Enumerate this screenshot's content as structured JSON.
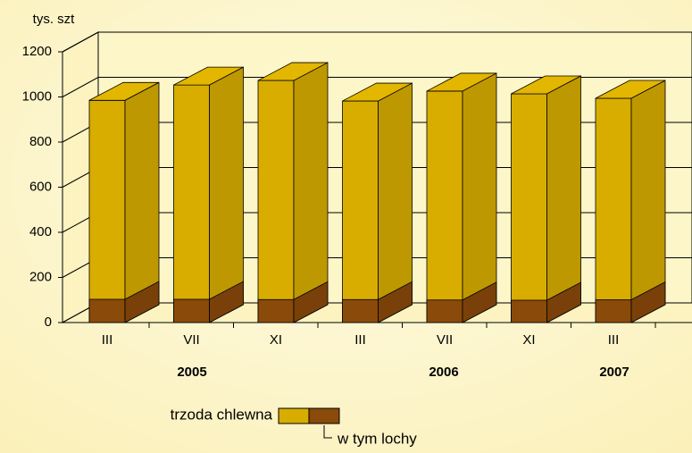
{
  "chart_data": {
    "type": "bar3d",
    "y_axis_label": "tys. szt",
    "categories": [
      "III",
      "VII",
      "XI",
      "III",
      "VII",
      "XI",
      "III"
    ],
    "groups": [
      "2005",
      "2006",
      "2007"
    ],
    "series": [
      {
        "name": "trzoda chlewna",
        "color": "#d8ad00",
        "values": [
          985,
          1053,
          1073,
          982,
          1026,
          1014,
          994
        ]
      },
      {
        "name": "w tym lochy",
        "color": "#8a4a0a",
        "values": [
          103,
          103,
          102,
          102,
          100,
          99,
          101
        ]
      }
    ],
    "ylim": [
      0,
      1200
    ],
    "yticks": [
      0,
      200,
      400,
      600,
      800,
      1000,
      1200
    ],
    "grid": true
  }
}
